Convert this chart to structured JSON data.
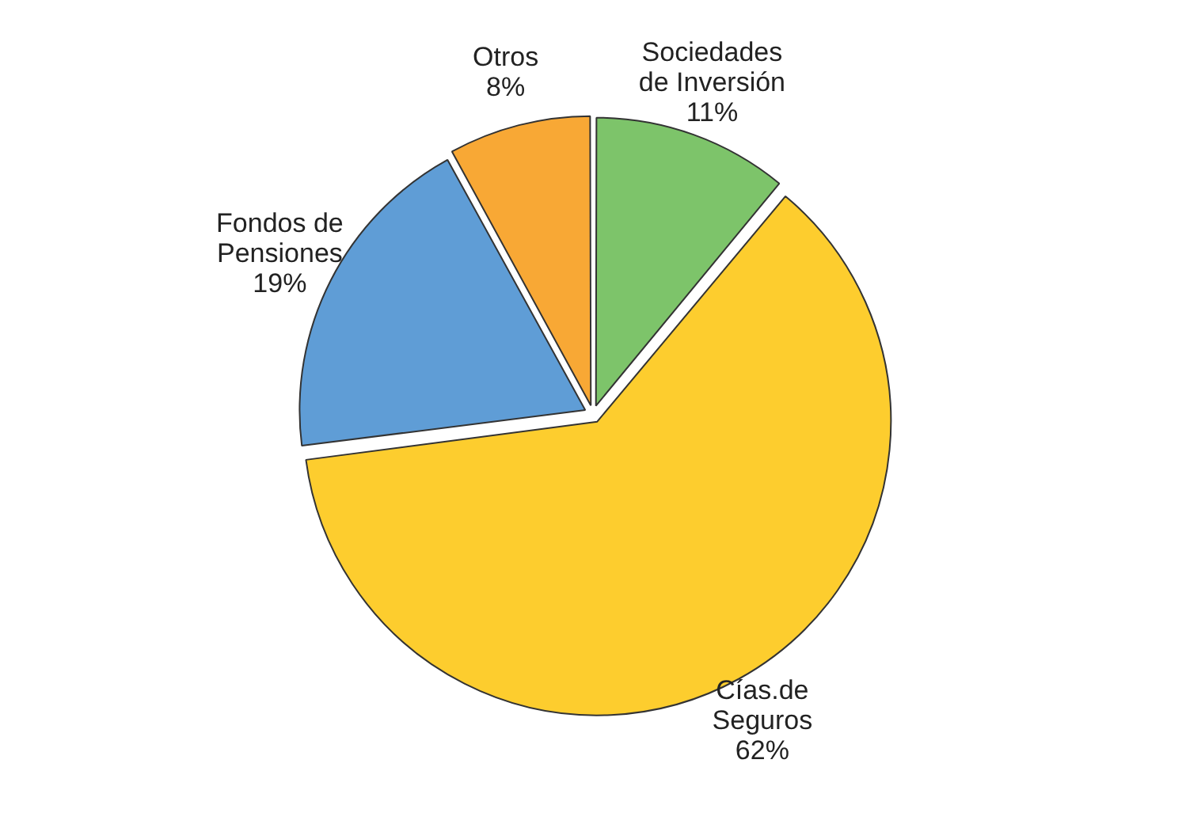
{
  "chart_data": {
    "type": "pie",
    "categories": [
      "Sociedades de Inversión",
      "Cías.de Seguros",
      "Fondos de Pensiones",
      "Otros"
    ],
    "values": [
      11,
      62,
      19,
      8
    ],
    "colors": [
      "#7dc46a",
      "#fdcd2e",
      "#5f9dd6",
      "#f8a835"
    ],
    "value_labels": [
      "11%",
      "62%",
      "19%",
      "8%"
    ],
    "legend": false
  }
}
